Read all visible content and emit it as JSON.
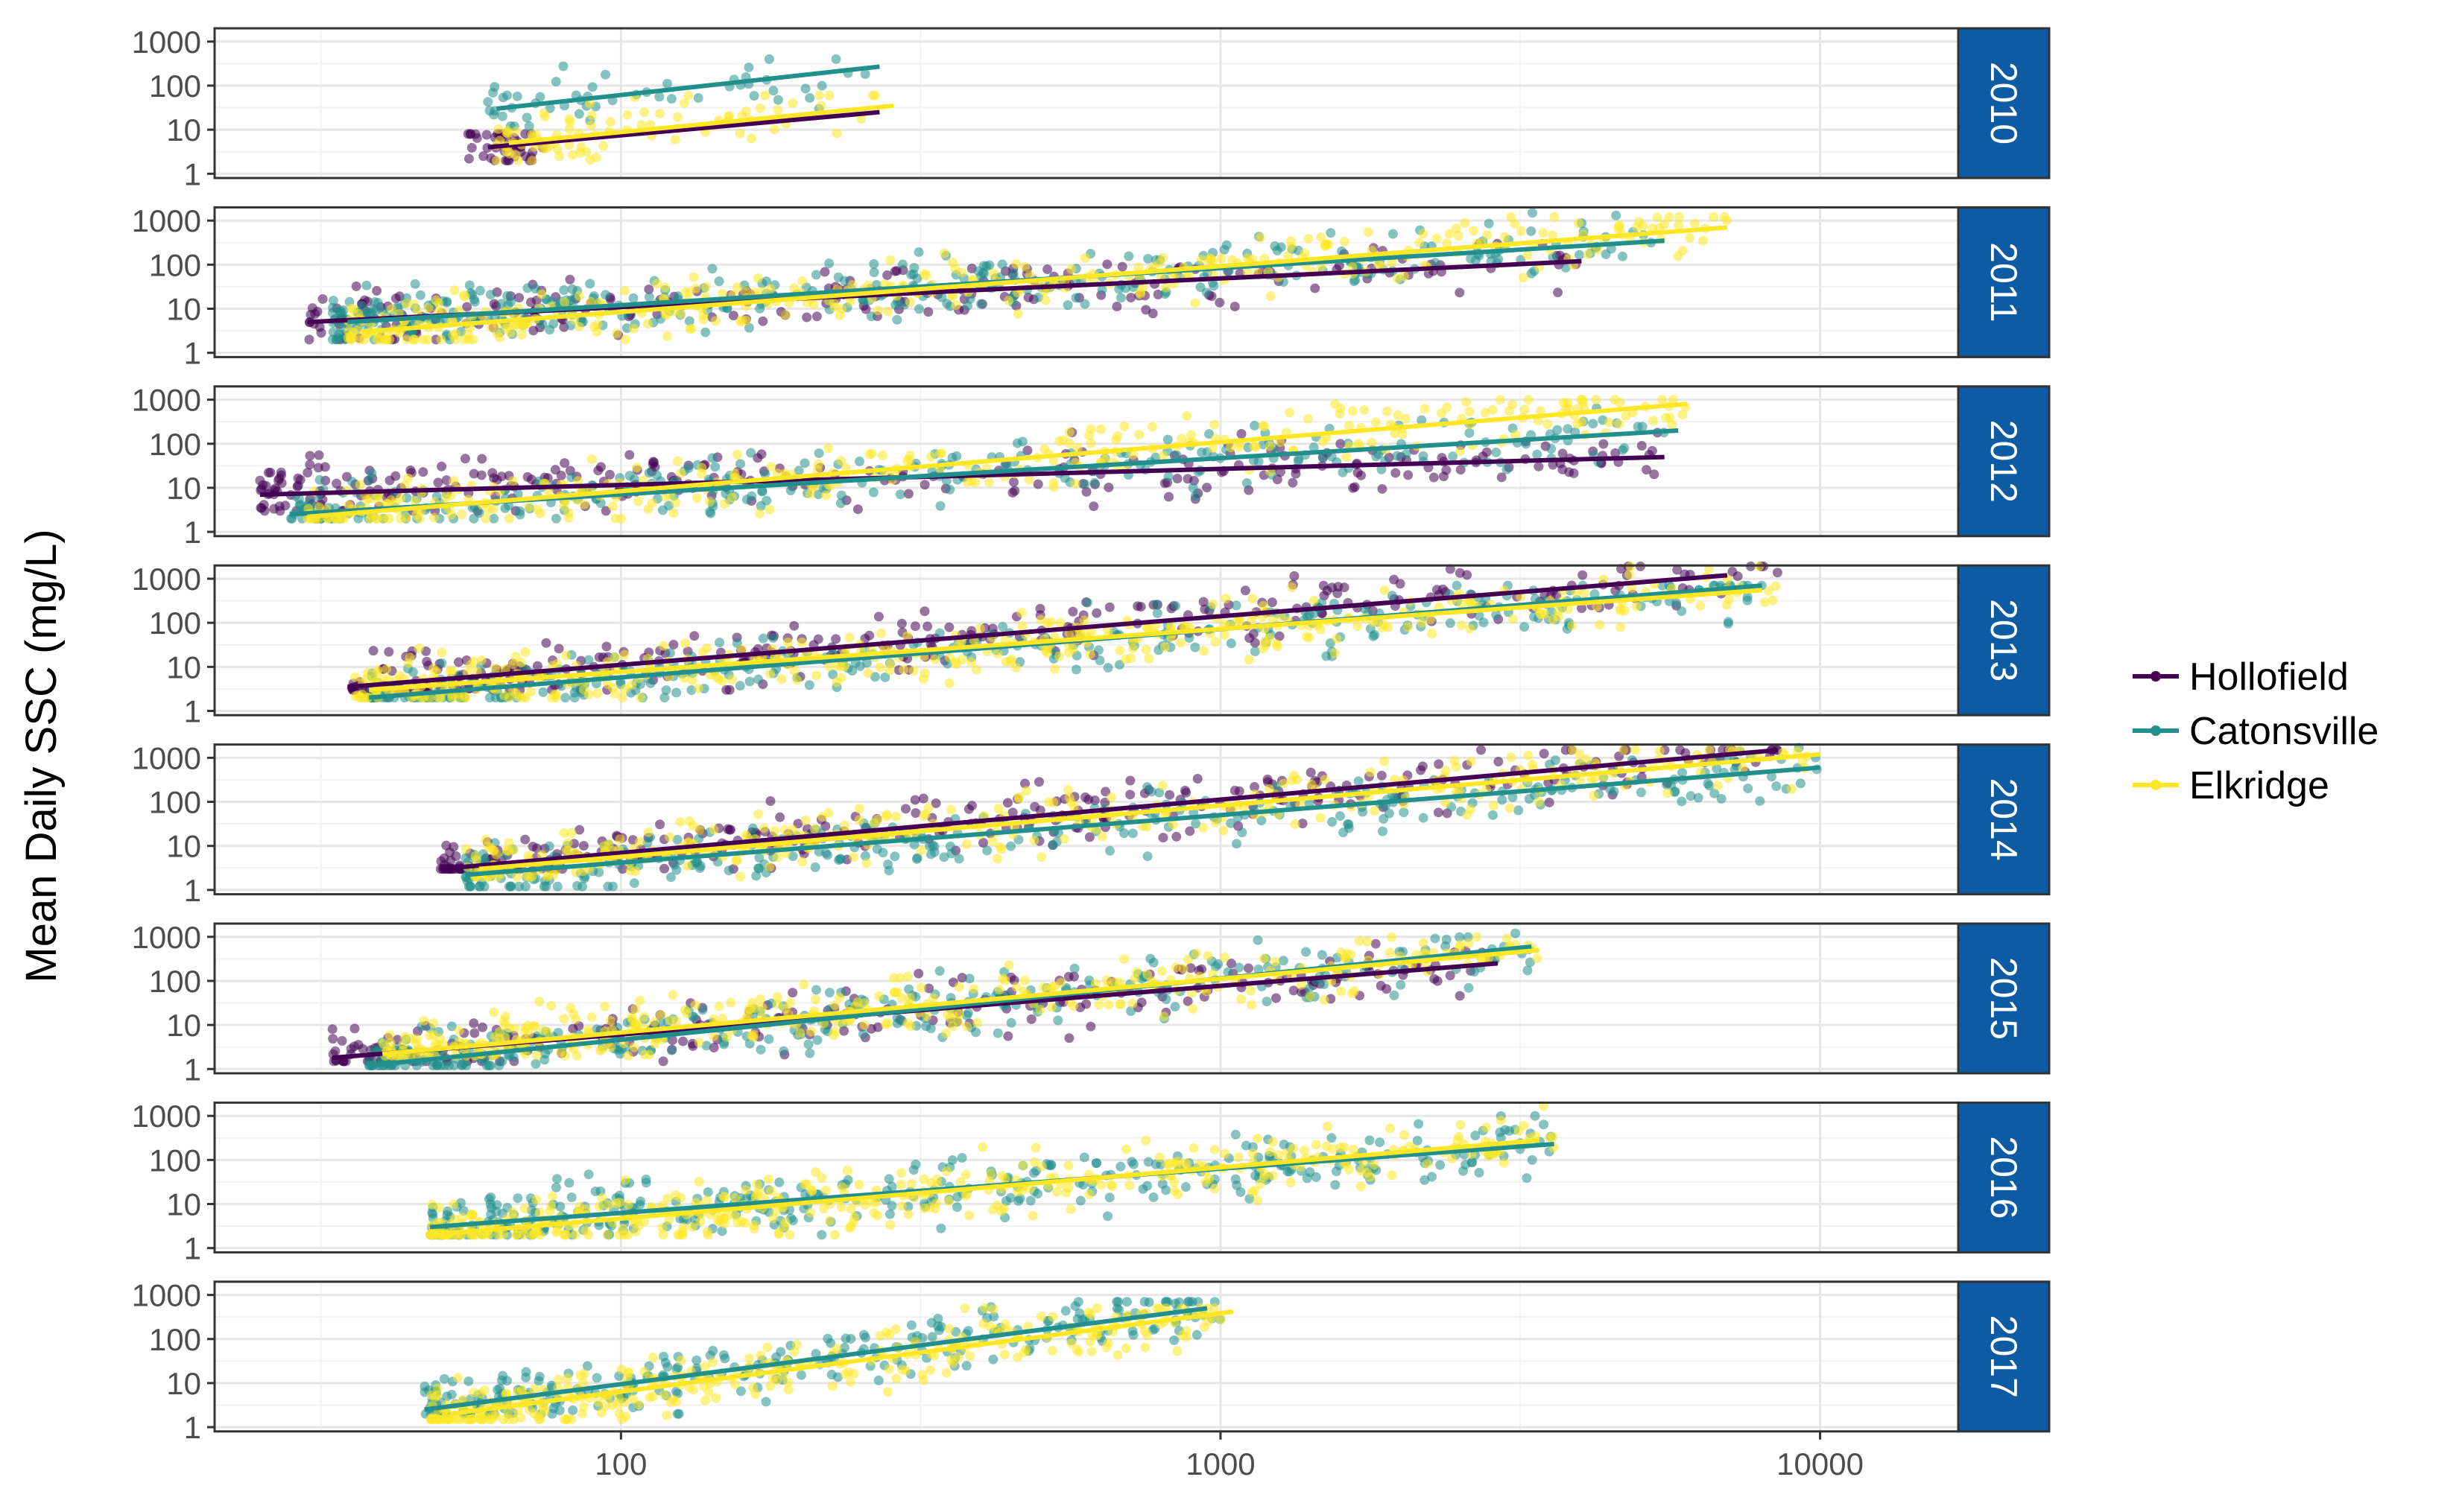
{
  "chart_data": {
    "type": "scatter",
    "title": "",
    "ylabel": "Mean Daily SSC (mg/L)",
    "xlabel": "",
    "x_scale": "log",
    "y_scale": "log",
    "xlim": [
      21,
      17000
    ],
    "ylim": [
      0.8,
      2000
    ],
    "x_ticks": [
      100,
      1000,
      10000
    ],
    "x_tick_labels": [
      "100",
      "1000",
      "10000"
    ],
    "y_ticks": [
      1,
      10,
      100,
      1000
    ],
    "y_tick_labels": [
      "1",
      "10",
      "100",
      "1000"
    ],
    "grid": true,
    "legend_position": "right",
    "legend": [
      {
        "name": "Hollofield",
        "color": "#440154"
      },
      {
        "name": "Catonsville",
        "color": "#21908C"
      },
      {
        "name": "Elkridge",
        "color": "#FDE725"
      }
    ],
    "panels": [
      {
        "label": "2010",
        "series": [
          {
            "name": "Hollofield",
            "x_range": [
              55,
              80
            ],
            "y_range": [
              2,
              8
            ],
            "trend": [
              [
                60,
                4
              ],
              [
                270,
                25
              ]
            ],
            "n": 45
          },
          {
            "name": "Catonsville",
            "x_range": [
              60,
              260
            ],
            "y_range": [
              12,
              400
            ],
            "trend": [
              [
                62,
                30
              ],
              [
                270,
                270
              ]
            ],
            "n": 55
          },
          {
            "name": "Elkridge",
            "x_range": [
              62,
              280
            ],
            "y_range": [
              2,
              60
            ],
            "trend": [
              [
                65,
                5
              ],
              [
                285,
                35
              ]
            ],
            "n": 90
          }
        ]
      },
      {
        "label": "2011",
        "series": [
          {
            "name": "Hollofield",
            "x_range": [
              30,
              4000
            ],
            "y_range": [
              2,
              300
            ],
            "trend": [
              [
                30,
                5
              ],
              [
                4000,
                120
              ]
            ],
            "n": 220
          },
          {
            "name": "Catonsville",
            "x_range": [
              33,
              5500
            ],
            "y_range": [
              2,
              1500
            ],
            "trend": [
              [
                35,
                5
              ],
              [
                5500,
                350
              ]
            ],
            "n": 380
          },
          {
            "name": "Elkridge",
            "x_range": [
              35,
              7000
            ],
            "y_range": [
              2,
              1200
            ],
            "trend": [
              [
                37,
                3
              ],
              [
                7000,
                700
              ]
            ],
            "n": 380
          }
        ]
      },
      {
        "label": "2012",
        "series": [
          {
            "name": "Hollofield",
            "x_range": [
              25,
              5500
            ],
            "y_range": [
              3,
              300
            ],
            "trend": [
              [
                25,
                7
              ],
              [
                5500,
                50
              ]
            ],
            "n": 280
          },
          {
            "name": "Catonsville",
            "x_range": [
              28,
              5500
            ],
            "y_range": [
              2,
              1500
            ],
            "trend": [
              [
                28,
                2.5
              ],
              [
                5800,
                200
              ]
            ],
            "n": 300
          },
          {
            "name": "Elkridge",
            "x_range": [
              30,
              6000
            ],
            "y_range": [
              2,
              1000
            ],
            "trend": [
              [
                30,
                2.2
              ],
              [
                6000,
                800
              ]
            ],
            "n": 330
          }
        ]
      },
      {
        "label": "2013",
        "series": [
          {
            "name": "Hollofield",
            "x_range": [
              35,
              8500
            ],
            "y_range": [
              3,
              2500
            ],
            "trend": [
              [
                35,
                3.5
              ],
              [
                7000,
                1200
              ]
            ],
            "n": 300
          },
          {
            "name": "Catonsville",
            "x_range": [
              38,
              8000
            ],
            "y_range": [
              2,
              700
            ],
            "trend": [
              [
                38,
                2
              ],
              [
                8000,
                700
              ]
            ],
            "n": 330
          },
          {
            "name": "Elkridge",
            "x_range": [
              36,
              8500
            ],
            "y_range": [
              2,
              2500
            ],
            "trend": [
              [
                38,
                3
              ],
              [
                8000,
                550
              ]
            ],
            "n": 420
          }
        ]
      },
      {
        "label": "2014",
        "series": [
          {
            "name": "Hollofield",
            "x_range": [
              50,
              8500
            ],
            "y_range": [
              3,
              1500
            ],
            "trend": [
              [
                50,
                3
              ],
              [
                8500,
                1500
              ]
            ],
            "n": 320
          },
          {
            "name": "Catonsville",
            "x_range": [
              55,
              10000
            ],
            "y_range": [
              1.2,
              2000
            ],
            "trend": [
              [
                55,
                2.2
              ],
              [
                10000,
                600
              ]
            ],
            "n": 330
          },
          {
            "name": "Elkridge",
            "x_range": [
              55,
              9500
            ],
            "y_range": [
              2,
              1500
            ],
            "trend": [
              [
                58,
                3
              ],
              [
                10000,
                1200
              ]
            ],
            "n": 330
          }
        ]
      },
      {
        "label": "2015",
        "series": [
          {
            "name": "Hollofield",
            "x_range": [
              33,
              2900
            ],
            "y_range": [
              1.5,
              700
            ],
            "trend": [
              [
                33,
                1.8
              ],
              [
                2900,
                250
              ]
            ],
            "n": 230
          },
          {
            "name": "Catonsville",
            "x_range": [
              38,
              3300
            ],
            "y_range": [
              1.2,
              1200
            ],
            "trend": [
              [
                38,
                1.2
              ],
              [
                3300,
                600
              ]
            ],
            "n": 330
          },
          {
            "name": "Elkridge",
            "x_range": [
              40,
              3500
            ],
            "y_range": [
              2,
              1000
            ],
            "trend": [
              [
                40,
                2.2
              ],
              [
                3400,
                500
              ]
            ],
            "n": 360
          }
        ]
      },
      {
        "label": "2016",
        "series": [
          {
            "name": "Catonsville",
            "x_range": [
              48,
              3600
            ],
            "y_range": [
              2,
              1000
            ],
            "trend": [
              [
                48,
                3
              ],
              [
                3600,
                230
              ]
            ],
            "n": 380
          },
          {
            "name": "Elkridge",
            "x_range": [
              48,
              3600
            ],
            "y_range": [
              2,
              2000
            ],
            "trend": [
              [
                48,
                2
              ],
              [
                3400,
                280
              ]
            ],
            "n": 420
          }
        ]
      },
      {
        "label": "2017",
        "series": [
          {
            "name": "Catonsville",
            "x_range": [
              47,
              1000
            ],
            "y_range": [
              2,
              700
            ],
            "trend": [
              [
                47,
                2.5
              ],
              [
                950,
                500
              ]
            ],
            "n": 280
          },
          {
            "name": "Elkridge",
            "x_range": [
              48,
              1050
            ],
            "y_range": [
              1.5,
              500
            ],
            "trend": [
              [
                52,
                2
              ],
              [
                1050,
                420
              ]
            ],
            "n": 320
          }
        ]
      }
    ]
  }
}
